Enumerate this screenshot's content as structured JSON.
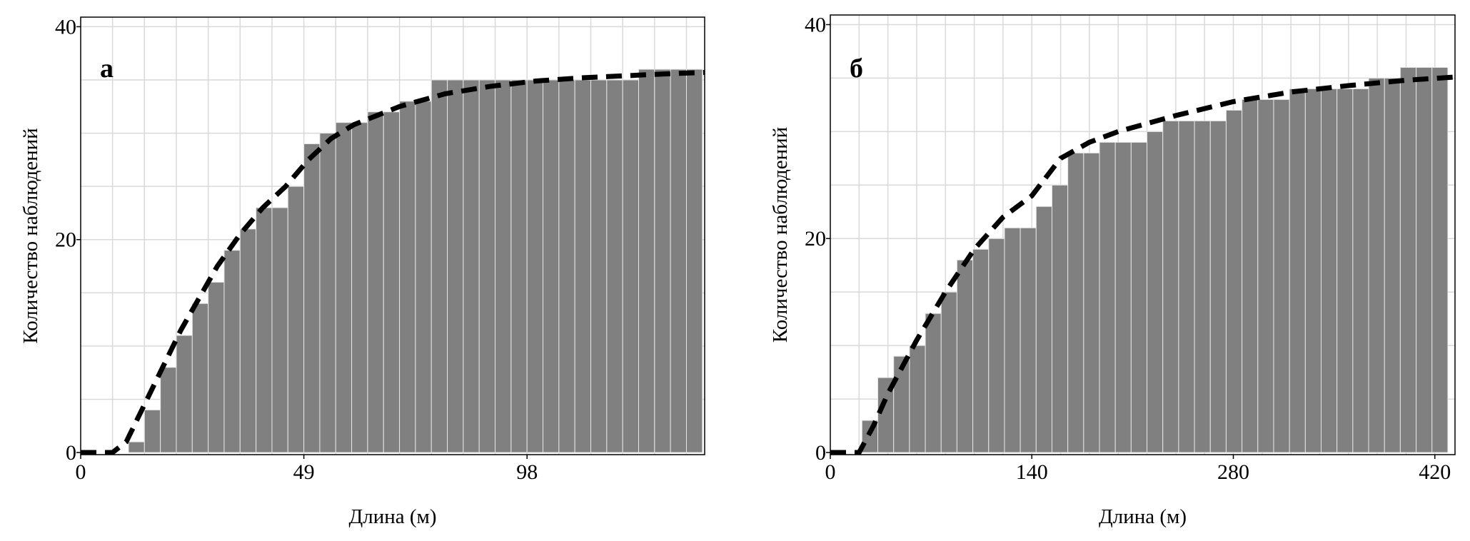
{
  "chart_data": [
    {
      "type": "histogram",
      "annotation": "а",
      "xlabel": "Длина (м)",
      "ylabel": "Количество наблюдений",
      "bins": [
        0,
        3.5,
        7,
        10.5,
        14,
        17.5,
        21,
        24.5,
        28,
        31.5,
        35,
        38.5,
        42,
        45.5,
        49,
        52.5,
        56,
        59.5,
        63,
        66.5,
        70,
        73.5,
        77,
        80.5,
        84,
        87.5,
        91,
        94.5,
        98,
        101.5,
        105,
        108.5,
        112,
        115.5,
        119,
        122.5,
        126,
        129.5,
        133,
        136.5
      ],
      "values": [
        0,
        0,
        0,
        1,
        4,
        8,
        11,
        14,
        16,
        19,
        21,
        23,
        23,
        25,
        29,
        30,
        31,
        31,
        32,
        32,
        33,
        33,
        35,
        35,
        35,
        35,
        35,
        35,
        35,
        35,
        35,
        35,
        35,
        35,
        35,
        36,
        36,
        36,
        36
      ],
      "color": "#808080",
      "curve": {
        "x": [
          0,
          7,
          10,
          14,
          18,
          22,
          26,
          30,
          35,
          40,
          45,
          50,
          55,
          60,
          70,
          80,
          90,
          100,
          110,
          120,
          130,
          137
        ],
        "y": [
          0,
          0,
          1,
          4.5,
          8,
          11.5,
          14.5,
          17.5,
          20.5,
          23,
          25,
          27.5,
          29.5,
          30.8,
          32.5,
          33.7,
          34.4,
          34.9,
          35.2,
          35.4,
          35.6,
          35.7
        ],
        "color": "#000000",
        "style": "dashed"
      },
      "xlim": [
        0,
        137
      ],
      "ylim": [
        -0.2,
        40.9
      ],
      "xticks": [
        0,
        49,
        98
      ],
      "yticks": [
        0,
        20,
        40
      ],
      "xgrid": [
        7,
        14,
        21,
        28,
        35,
        42,
        49,
        56,
        63,
        70,
        77,
        84,
        91,
        98,
        105,
        112,
        119,
        126,
        133
      ],
      "ygrid": [
        5,
        10,
        15,
        20,
        25,
        30,
        35,
        40
      ]
    },
    {
      "type": "histogram",
      "annotation": "б",
      "xlabel": "Длина (м)",
      "ylabel": "Количество наблюдений",
      "bins": [
        0,
        11,
        22,
        33,
        44,
        55,
        66,
        77,
        88,
        99,
        110,
        121,
        132,
        143,
        154,
        165,
        176,
        187,
        198,
        209,
        220,
        231,
        242,
        253,
        264,
        275,
        286,
        297,
        308,
        319,
        330,
        341,
        352,
        363,
        374,
        385,
        396,
        407,
        418,
        429
      ],
      "values": [
        0,
        0,
        3,
        7,
        9,
        10,
        13,
        15,
        18,
        19,
        20,
        21,
        21,
        23,
        25,
        28,
        28,
        29,
        29,
        29,
        30,
        31,
        31,
        31,
        31,
        32,
        33,
        33,
        33,
        34,
        34,
        34,
        34,
        34,
        35,
        35,
        36,
        36,
        36
      ],
      "color": "#808080",
      "curve": {
        "x": [
          0,
          20,
          30,
          40,
          50,
          60,
          80,
          100,
          120,
          140,
          160,
          180,
          200,
          240,
          280,
          320,
          360,
          400,
          434
        ],
        "y": [
          0,
          0,
          2.5,
          5.5,
          8,
          10.5,
          15,
          19,
          22,
          24,
          27.5,
          29,
          30,
          31.5,
          32.8,
          33.7,
          34.3,
          34.8,
          35.1
        ],
        "color": "#000000",
        "style": "dashed"
      },
      "xlim": [
        0,
        434
      ],
      "ylim": [
        -0.2,
        40.9
      ],
      "xticks": [
        0,
        140,
        280,
        420
      ],
      "yticks": [
        0,
        20,
        40
      ],
      "xgrid": [
        20,
        40,
        60,
        80,
        100,
        120,
        140,
        160,
        180,
        200,
        220,
        240,
        260,
        280,
        300,
        320,
        340,
        360,
        380,
        400,
        420
      ],
      "ygrid": [
        5,
        10,
        15,
        20,
        25,
        30,
        35,
        40
      ]
    }
  ]
}
